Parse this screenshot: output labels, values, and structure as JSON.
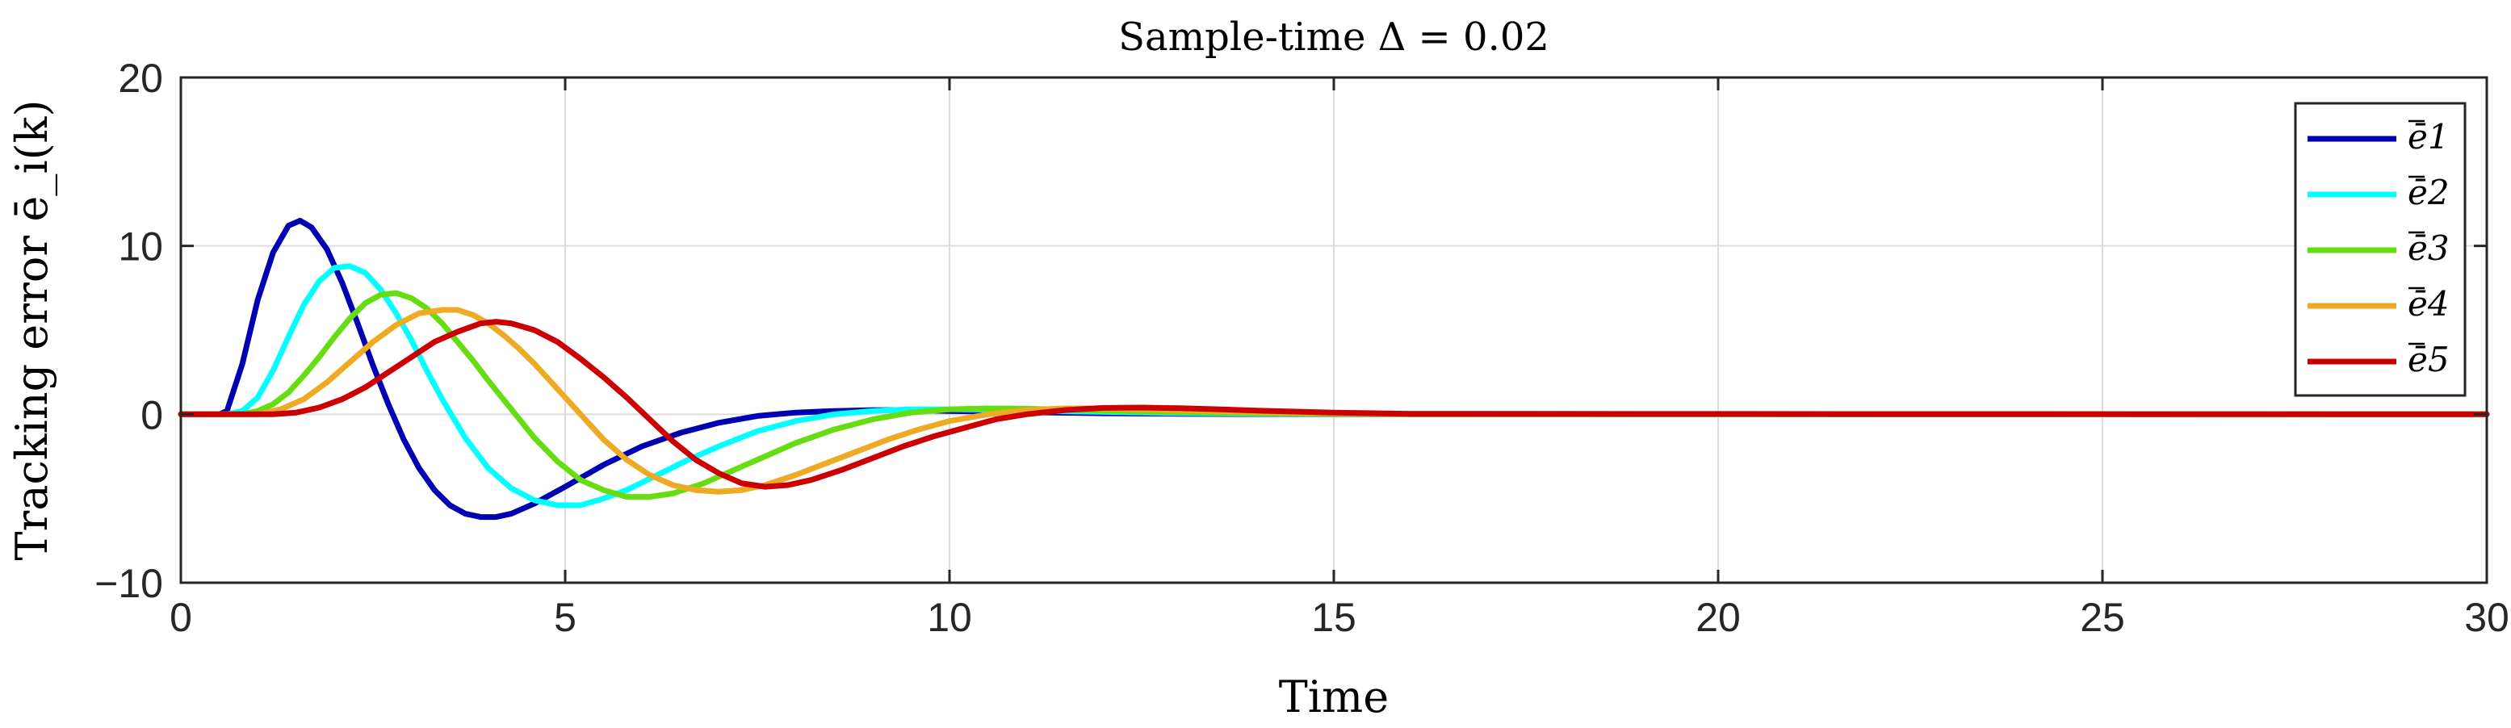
{
  "chart_data": {
    "type": "line",
    "title": "Sample-time Δ = 0.02",
    "xlabel": "Time",
    "ylabel": "Tracking error ē_i(k)",
    "xlim": [
      0,
      30
    ],
    "ylim": [
      -10,
      20
    ],
    "xticks": [
      0,
      5,
      10,
      15,
      20,
      25,
      30
    ],
    "yticks": [
      -10,
      0,
      10,
      20
    ],
    "xtick_labels": [
      "0",
      "5",
      "10",
      "15",
      "20",
      "25",
      "30"
    ],
    "ytick_labels": [
      "−10",
      "0",
      "10",
      "20"
    ],
    "grid": true,
    "legend_position": "top-right",
    "series": [
      {
        "name": "ē1",
        "sub": "1",
        "color": "#0000b3",
        "x": [
          0,
          0.5,
          0.6,
          0.8,
          1.0,
          1.2,
          1.4,
          1.55,
          1.7,
          1.9,
          2.1,
          2.3,
          2.5,
          2.7,
          2.9,
          3.1,
          3.3,
          3.5,
          3.7,
          3.9,
          4.1,
          4.3,
          4.6,
          5.0,
          5.5,
          6.0,
          6.5,
          7.0,
          7.5,
          8.0,
          8.5,
          9.0,
          9.5,
          10.0,
          11.0,
          12.0,
          13.0,
          14.0,
          15.0,
          16.0,
          30.0
        ],
        "y": [
          0,
          0,
          0.2,
          3.0,
          6.8,
          9.6,
          11.2,
          11.5,
          11.1,
          9.8,
          7.8,
          5.4,
          2.9,
          0.6,
          -1.5,
          -3.2,
          -4.5,
          -5.4,
          -5.9,
          -6.1,
          -6.1,
          -5.9,
          -5.3,
          -4.3,
          -3.0,
          -1.9,
          -1.1,
          -0.5,
          -0.1,
          0.1,
          0.2,
          0.25,
          0.25,
          0.2,
          0.12,
          0.06,
          0.03,
          0.01,
          0,
          0,
          0
        ]
      },
      {
        "name": "ē2",
        "sub": "2",
        "color": "#00ffff",
        "x": [
          0,
          0.6,
          0.8,
          1.0,
          1.2,
          1.4,
          1.6,
          1.8,
          2.0,
          2.2,
          2.4,
          2.6,
          2.8,
          3.0,
          3.2,
          3.4,
          3.7,
          4.0,
          4.3,
          4.6,
          4.9,
          5.2,
          5.5,
          5.8,
          6.2,
          6.6,
          7.0,
          7.5,
          8.0,
          8.5,
          9.0,
          9.5,
          10.0,
          10.5,
          11.0,
          12.0,
          13.0,
          14.0,
          15.0,
          16.0,
          30.0
        ],
        "y": [
          0,
          0,
          0.2,
          1.0,
          2.6,
          4.6,
          6.5,
          7.9,
          8.7,
          8.8,
          8.4,
          7.4,
          6.0,
          4.4,
          2.6,
          0.9,
          -1.4,
          -3.2,
          -4.4,
          -5.1,
          -5.4,
          -5.4,
          -5.0,
          -4.5,
          -3.6,
          -2.7,
          -1.9,
          -1.0,
          -0.4,
          0.0,
          0.2,
          0.3,
          0.3,
          0.28,
          0.22,
          0.14,
          0.07,
          0.03,
          0.01,
          0,
          0
        ]
      },
      {
        "name": "ē3",
        "sub": "3",
        "color": "#66dd11",
        "x": [
          0,
          0.8,
          1.0,
          1.2,
          1.4,
          1.6,
          1.8,
          2.0,
          2.2,
          2.4,
          2.6,
          2.8,
          3.0,
          3.2,
          3.4,
          3.6,
          3.8,
          4.0,
          4.3,
          4.6,
          4.9,
          5.2,
          5.5,
          5.8,
          6.1,
          6.4,
          6.8,
          7.2,
          7.6,
          8.0,
          8.5,
          9.0,
          9.5,
          10.0,
          10.5,
          11.0,
          11.5,
          12.0,
          13.0,
          14.0,
          15.0,
          16.0,
          30.0
        ],
        "y": [
          0,
          0,
          0.2,
          0.6,
          1.3,
          2.3,
          3.4,
          4.6,
          5.7,
          6.6,
          7.1,
          7.2,
          6.9,
          6.3,
          5.4,
          4.3,
          3.2,
          2.0,
          0.3,
          -1.4,
          -2.8,
          -3.9,
          -4.5,
          -4.9,
          -4.9,
          -4.7,
          -4.1,
          -3.3,
          -2.5,
          -1.7,
          -0.9,
          -0.3,
          0.1,
          0.3,
          0.35,
          0.33,
          0.28,
          0.22,
          0.12,
          0.06,
          0.02,
          0,
          0
        ]
      },
      {
        "name": "ē4",
        "sub": "4",
        "color": "#eeaa22",
        "x": [
          0,
          1.0,
          1.3,
          1.6,
          1.9,
          2.2,
          2.5,
          2.8,
          3.1,
          3.4,
          3.6,
          3.8,
          4.0,
          4.2,
          4.4,
          4.6,
          4.9,
          5.2,
          5.5,
          5.8,
          6.1,
          6.4,
          6.7,
          7.0,
          7.3,
          7.6,
          8.0,
          8.4,
          8.8,
          9.2,
          9.6,
          10.0,
          10.5,
          11.0,
          11.5,
          12.0,
          12.5,
          13.0,
          14.0,
          15.0,
          16.0,
          30.0
        ],
        "y": [
          0,
          0,
          0.3,
          0.9,
          1.9,
          3.1,
          4.3,
          5.3,
          6.0,
          6.2,
          6.2,
          5.9,
          5.4,
          4.7,
          3.9,
          3.0,
          1.5,
          0.0,
          -1.5,
          -2.7,
          -3.6,
          -4.2,
          -4.5,
          -4.6,
          -4.5,
          -4.2,
          -3.6,
          -2.9,
          -2.2,
          -1.5,
          -0.9,
          -0.4,
          0.0,
          0.25,
          0.35,
          0.35,
          0.3,
          0.24,
          0.13,
          0.06,
          0.02,
          0
        ]
      },
      {
        "name": "ē5",
        "sub": "5",
        "color": "#cc0000",
        "x": [
          0,
          1.2,
          1.5,
          1.8,
          2.1,
          2.4,
          2.7,
          3.0,
          3.3,
          3.6,
          3.9,
          4.1,
          4.3,
          4.6,
          4.9,
          5.2,
          5.5,
          5.8,
          6.1,
          6.4,
          6.7,
          7.0,
          7.3,
          7.6,
          7.9,
          8.2,
          8.6,
          9.0,
          9.4,
          9.8,
          10.2,
          10.6,
          11.0,
          11.5,
          12.0,
          12.5,
          13.0,
          13.5,
          14.0,
          15.0,
          16.0,
          30.0
        ],
        "y": [
          0,
          0,
          0.1,
          0.4,
          0.9,
          1.6,
          2.5,
          3.4,
          4.3,
          4.9,
          5.4,
          5.5,
          5.4,
          5.0,
          4.3,
          3.3,
          2.2,
          1.0,
          -0.3,
          -1.6,
          -2.7,
          -3.5,
          -4.1,
          -4.3,
          -4.2,
          -3.9,
          -3.3,
          -2.6,
          -1.9,
          -1.3,
          -0.8,
          -0.3,
          0.0,
          0.25,
          0.38,
          0.4,
          0.36,
          0.3,
          0.22,
          0.1,
          0.03,
          0
        ]
      }
    ]
  }
}
